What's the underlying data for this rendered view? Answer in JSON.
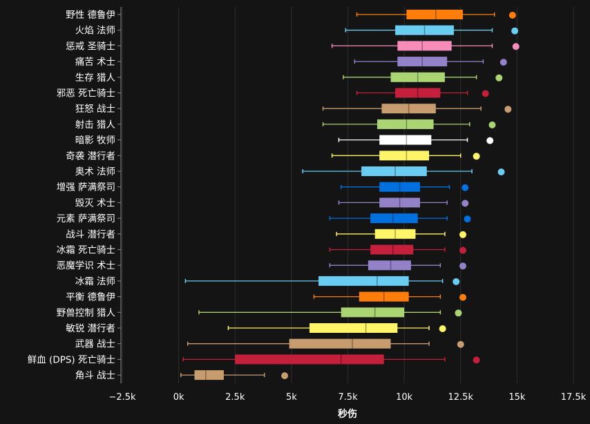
{
  "chart_data": {
    "type": "box",
    "orientation": "horizontal",
    "xlabel": "秒伤",
    "ylabel": "",
    "title": "",
    "xlim": [
      -2500,
      17500
    ],
    "xticks": [
      -2500,
      0,
      2500,
      5000,
      7500,
      10000,
      12500,
      15000,
      17500
    ],
    "xtick_labels": [
      "−2.5k",
      "0k",
      "2.5k",
      "5k",
      "7.5k",
      "10k",
      "12.5k",
      "15k",
      "17.5k"
    ],
    "grid": "vertical",
    "categories": [
      {
        "name": "野性 德鲁伊",
        "color": "#FF7D0A",
        "whisker_low": 7900,
        "q1": 10100,
        "median": 11400,
        "q3": 12600,
        "whisker_high": 14000,
        "outlier": 14800
      },
      {
        "name": "火焰 法师",
        "color": "#69CCF0",
        "whisker_low": 7400,
        "q1": 9600,
        "median": 10900,
        "q3": 12200,
        "whisker_high": 13900,
        "outlier": 14900
      },
      {
        "name": "惩戒 圣骑士",
        "color": "#F58CBA",
        "whisker_low": 6800,
        "q1": 9700,
        "median": 10800,
        "q3": 12100,
        "whisker_high": 13900,
        "outlier": 14950
      },
      {
        "name": "痛苦 术士",
        "color": "#9482C9",
        "whisker_low": 7800,
        "q1": 9700,
        "median": 10800,
        "q3": 11900,
        "whisker_high": 13500,
        "outlier": 14400
      },
      {
        "name": "生存 猎人",
        "color": "#ABD473",
        "whisker_low": 7300,
        "q1": 9400,
        "median": 10600,
        "q3": 11800,
        "whisker_high": 13200,
        "outlier": 14200
      },
      {
        "name": "邪恶 死亡骑士",
        "color": "#C41F3B",
        "whisker_low": 7900,
        "q1": 9600,
        "median": 10600,
        "q3": 11600,
        "whisker_high": 12800,
        "outlier": 13600
      },
      {
        "name": "狂怒 战士",
        "color": "#C79C6E",
        "whisker_low": 6400,
        "q1": 9000,
        "median": 10200,
        "q3": 11400,
        "whisker_high": 13400,
        "outlier": 14600
      },
      {
        "name": "射击 猎人",
        "color": "#ABD473",
        "whisker_low": 6400,
        "q1": 8800,
        "median": 10100,
        "q3": 11300,
        "whisker_high": 12900,
        "outlier": 13900
      },
      {
        "name": "暗影 牧师",
        "color": "#FFFFFF",
        "whisker_low": 7100,
        "q1": 8900,
        "median": 10100,
        "q3": 11200,
        "whisker_high": 12800,
        "outlier": 13800
      },
      {
        "name": "奇袭 潜行者",
        "color": "#FFF569",
        "whisker_low": 6800,
        "q1": 8900,
        "median": 10100,
        "q3": 11100,
        "whisker_high": 12500,
        "outlier": 13200
      },
      {
        "name": "奥术 法师",
        "color": "#69CCF0",
        "whisker_low": 5500,
        "q1": 8100,
        "median": 9600,
        "q3": 11000,
        "whisker_high": 13000,
        "outlier": 14300
      },
      {
        "name": "增强 萨满祭司",
        "color": "#0070DE",
        "whisker_low": 7200,
        "q1": 8900,
        "median": 9800,
        "q3": 10700,
        "whisker_high": 12000,
        "outlier": 12700
      },
      {
        "name": "毁灭 术士",
        "color": "#9482C9",
        "whisker_low": 7100,
        "q1": 8900,
        "median": 9800,
        "q3": 10700,
        "whisker_high": 11900,
        "outlier": 12700
      },
      {
        "name": "元素 萨满祭司",
        "color": "#0070DE",
        "whisker_low": 6700,
        "q1": 8500,
        "median": 9500,
        "q3": 10600,
        "whisker_high": 11900,
        "outlier": 12800
      },
      {
        "name": "战斗 潜行者",
        "color": "#FFF569",
        "whisker_low": 7000,
        "q1": 8700,
        "median": 9600,
        "q3": 10500,
        "whisker_high": 11800,
        "outlier": 12600
      },
      {
        "name": "冰霜 死亡骑士",
        "color": "#C41F3B",
        "whisker_low": 6700,
        "q1": 8500,
        "median": 9500,
        "q3": 10400,
        "whisker_high": 11800,
        "outlier": 12600
      },
      {
        "name": "恶魔学识 术士",
        "color": "#9482C9",
        "whisker_low": 6700,
        "q1": 8400,
        "median": 9400,
        "q3": 10300,
        "whisker_high": 11600,
        "outlier": 12600
      },
      {
        "name": "冰霜 法师",
        "color": "#69CCF0",
        "whisker_low": 300,
        "q1": 6200,
        "median": 8800,
        "q3": 10200,
        "whisker_high": 11700,
        "outlier": 12300
      },
      {
        "name": "平衡 德鲁伊",
        "color": "#FF7D0A",
        "whisker_low": 6000,
        "q1": 8000,
        "median": 9100,
        "q3": 10200,
        "whisker_high": 11600,
        "outlier": 12600
      },
      {
        "name": "野兽控制 猎人",
        "color": "#ABD473",
        "whisker_low": 900,
        "q1": 7200,
        "median": 8700,
        "q3": 10000,
        "whisker_high": 11600,
        "outlier": 12400
      },
      {
        "name": "敏锐 潜行者",
        "color": "#FFF569",
        "whisker_low": 2200,
        "q1": 5800,
        "median": 8300,
        "q3": 9700,
        "whisker_high": 11100,
        "outlier": 11700
      },
      {
        "name": "武器 战士",
        "color": "#C79C6E",
        "whisker_low": 400,
        "q1": 4900,
        "median": 7700,
        "q3": 9400,
        "whisker_high": 11100,
        "outlier": 12500
      },
      {
        "name": "鲜血 (DPS) 死亡骑士",
        "color": "#C41F3B",
        "whisker_low": 200,
        "q1": 2500,
        "median": 7200,
        "q3": 9100,
        "whisker_high": 11800,
        "outlier": 13200
      },
      {
        "name": "角斗 战士",
        "color": "#C79C6E",
        "whisker_low": 100,
        "q1": 700,
        "median": 1200,
        "q3": 2000,
        "whisker_high": 3800,
        "outlier": 4700
      }
    ]
  }
}
